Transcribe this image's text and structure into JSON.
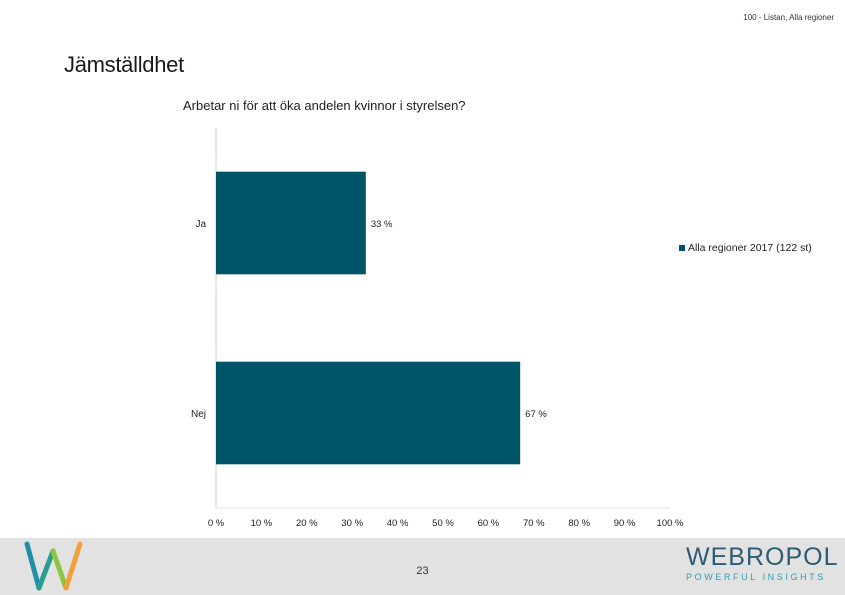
{
  "header": {
    "subtitle": "100 - Listan, Alla regioner"
  },
  "page": {
    "title": "Jämställdhet",
    "number": "23"
  },
  "footer": {
    "brand_name": "WEBROPOL",
    "brand_tagline": "POWERFUL INSIGHTS"
  },
  "colors": {
    "bar": "#005468",
    "footer_bg": "#e2e2e2"
  },
  "chart_data": {
    "type": "bar",
    "orientation": "horizontal",
    "title": "Arbetar ni för att öka andelen kvinnor i styrelsen?",
    "categories": [
      "Ja",
      "Nej"
    ],
    "series": [
      {
        "name": "Alla regioner 2017 (122 st)",
        "values": [
          33,
          67
        ],
        "labels": [
          "33 %",
          "67 %"
        ]
      }
    ],
    "xlim": [
      0,
      100
    ],
    "xticks": [
      "0 %",
      "10 %",
      "20 %",
      "30 %",
      "40 %",
      "50 %",
      "60 %",
      "70 %",
      "80 %",
      "90 %",
      "100 %"
    ],
    "grid": false,
    "legend": "right"
  }
}
